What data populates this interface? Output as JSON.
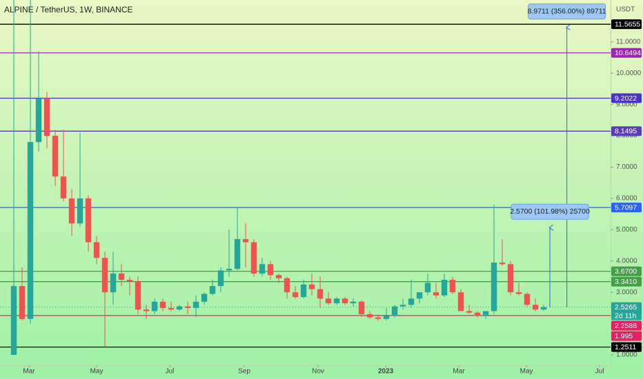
{
  "chart_data": {
    "type": "candlestick",
    "title": "ALPINE / TetherUS, 1W, BINANCE",
    "currency": "USDT",
    "up_color": "#26a69a",
    "down_color": "#ef5350",
    "xlim": [
      -1.67,
      72.08
    ],
    "ylim": [
      0.67,
      12.34
    ],
    "xticks": [
      {
        "value": 1.83,
        "label": "Mar"
      },
      {
        "value": 10,
        "label": "May"
      },
      {
        "value": 18.83,
        "label": "Jul"
      },
      {
        "value": 27.83,
        "label": "Sep"
      },
      {
        "value": 36.75,
        "label": "Nov"
      },
      {
        "value": 44.92,
        "label": "2023"
      },
      {
        "value": 53.75,
        "label": "Mar"
      },
      {
        "value": 61.92,
        "label": "May"
      },
      {
        "value": 70.75,
        "label": "Jul"
      }
    ],
    "yticks": [
      {
        "value": 1,
        "label": "1.0000"
      },
      {
        "value": 3,
        "label": "3.0000"
      },
      {
        "value": 4,
        "label": "4.0000"
      },
      {
        "value": 5,
        "label": "5.0000"
      },
      {
        "value": 6,
        "label": "6.0000"
      },
      {
        "value": 7,
        "label": "7.0000"
      },
      {
        "value": 8,
        "label": "8.0000"
      },
      {
        "value": 9,
        "label": "9.0000"
      },
      {
        "value": 10,
        "label": "10.0000"
      },
      {
        "value": 11,
        "label": "11.0000"
      }
    ],
    "candles": [
      [
        1.0,
        12.4,
        1.0,
        3.2
      ],
      [
        3.2,
        3.8,
        2.1,
        2.15
      ],
      [
        2.15,
        12.4,
        2.0,
        7.8
      ],
      [
        7.8,
        10.7,
        7.5,
        9.2
      ],
      [
        9.2,
        9.4,
        7.6,
        8.0
      ],
      [
        8.0,
        8.2,
        6.4,
        6.7
      ],
      [
        6.7,
        8.2,
        5.9,
        6.0
      ],
      [
        6.0,
        6.3,
        4.8,
        5.2
      ],
      [
        5.2,
        8.1,
        5.1,
        6.0
      ],
      [
        6.0,
        6.1,
        4.3,
        4.6
      ],
      [
        4.6,
        4.8,
        3.9,
        4.1
      ],
      [
        4.1,
        4.3,
        1.25,
        3.0
      ],
      [
        3.0,
        4.3,
        2.6,
        3.6
      ],
      [
        3.6,
        3.9,
        3.2,
        3.4
      ],
      [
        3.4,
        3.5,
        2.9,
        3.35
      ],
      [
        3.35,
        3.5,
        2.3,
        2.45
      ],
      [
        2.45,
        2.6,
        2.15,
        2.4
      ],
      [
        2.4,
        2.8,
        2.3,
        2.7
      ],
      [
        2.7,
        2.8,
        2.4,
        2.5
      ],
      [
        2.5,
        2.7,
        2.4,
        2.45
      ],
      [
        2.45,
        2.6,
        2.4,
        2.55
      ],
      [
        2.55,
        2.7,
        2.3,
        2.5
      ],
      [
        2.5,
        2.9,
        2.2,
        2.7
      ],
      [
        2.7,
        3.0,
        2.6,
        2.95
      ],
      [
        2.95,
        3.4,
        2.9,
        3.2
      ],
      [
        3.2,
        3.8,
        3.0,
        3.7
      ],
      [
        3.7,
        5.0,
        3.5,
        3.75
      ],
      [
        3.75,
        5.7,
        3.7,
        4.7
      ],
      [
        4.7,
        5.2,
        3.8,
        4.6
      ],
      [
        4.6,
        4.7,
        3.5,
        3.6
      ],
      [
        3.6,
        4.1,
        3.5,
        3.9
      ],
      [
        3.9,
        4.0,
        3.4,
        3.55
      ],
      [
        3.55,
        3.6,
        3.3,
        3.45
      ],
      [
        3.45,
        3.5,
        2.8,
        3.0
      ],
      [
        3.0,
        3.2,
        2.8,
        2.85
      ],
      [
        2.85,
        3.4,
        2.8,
        3.25
      ],
      [
        3.25,
        3.6,
        2.9,
        3.1
      ],
      [
        3.1,
        3.5,
        2.5,
        2.8
      ],
      [
        2.8,
        3.0,
        2.6,
        2.65
      ],
      [
        2.65,
        2.85,
        2.6,
        2.8
      ],
      [
        2.8,
        2.85,
        2.6,
        2.65
      ],
      [
        2.65,
        2.8,
        2.55,
        2.7
      ],
      [
        2.7,
        2.75,
        2.2,
        2.3
      ],
      [
        2.3,
        2.4,
        2.15,
        2.2
      ],
      [
        2.2,
        2.3,
        2.1,
        2.15
      ],
      [
        2.15,
        2.5,
        2.1,
        2.25
      ],
      [
        2.25,
        2.6,
        2.2,
        2.55
      ],
      [
        2.55,
        2.8,
        2.45,
        2.6
      ],
      [
        2.6,
        3.4,
        2.5,
        2.8
      ],
      [
        2.8,
        3.0,
        2.65,
        3.0
      ],
      [
        3.0,
        3.6,
        2.9,
        3.3
      ],
      [
        3.0,
        3.3,
        2.8,
        2.9
      ],
      [
        2.9,
        3.6,
        2.85,
        3.4
      ],
      [
        3.4,
        3.5,
        2.95,
        3.0
      ],
      [
        3.0,
        3.1,
        2.4,
        2.4
      ],
      [
        2.4,
        2.6,
        2.3,
        2.35
      ],
      [
        2.35,
        2.4,
        2.2,
        2.25
      ],
      [
        2.25,
        2.4,
        2.15,
        2.4
      ],
      [
        2.4,
        5.8,
        2.3,
        3.95
      ],
      [
        3.95,
        4.7,
        3.85,
        3.9
      ],
      [
        3.9,
        4.0,
        2.9,
        3.0
      ],
      [
        3.0,
        3.3,
        2.9,
        2.95
      ],
      [
        2.95,
        3.0,
        2.55,
        2.6
      ],
      [
        2.6,
        2.8,
        2.4,
        2.45
      ],
      [
        2.45,
        2.6,
        2.4,
        2.5265
      ]
    ],
    "levels": [
      {
        "price": 11.5655,
        "color": "#000000"
      },
      {
        "price": 10.6494,
        "color": "#9c27b0"
      },
      {
        "price": 9.2022,
        "color": "#4a32c8"
      },
      {
        "price": 8.1495,
        "color": "#5a3cb8"
      },
      {
        "price": 5.7097,
        "color": "#2962ff"
      },
      {
        "price": 3.67,
        "label": "3.6700",
        "color": "#43a047"
      },
      {
        "price": 3.341,
        "label": "3.3410",
        "color": "#43a047"
      },
      {
        "price": 2.2588,
        "color": "#e91e63"
      },
      {
        "price": 1.995,
        "color": "#e91e63",
        "line": false
      },
      {
        "price": 1.2511,
        "color": "#000000"
      }
    ],
    "last_price": 2.5265,
    "countdown": "2d 11h",
    "measurements": [
      {
        "x": 66.8,
        "from": 2.52,
        "to": 11.49,
        "label": "8.9711 (356.00%) 89711"
      },
      {
        "x": 64.75,
        "from": 2.52,
        "to": 5.09,
        "label": "2.5700 (101.98%) 25700"
      }
    ]
  }
}
